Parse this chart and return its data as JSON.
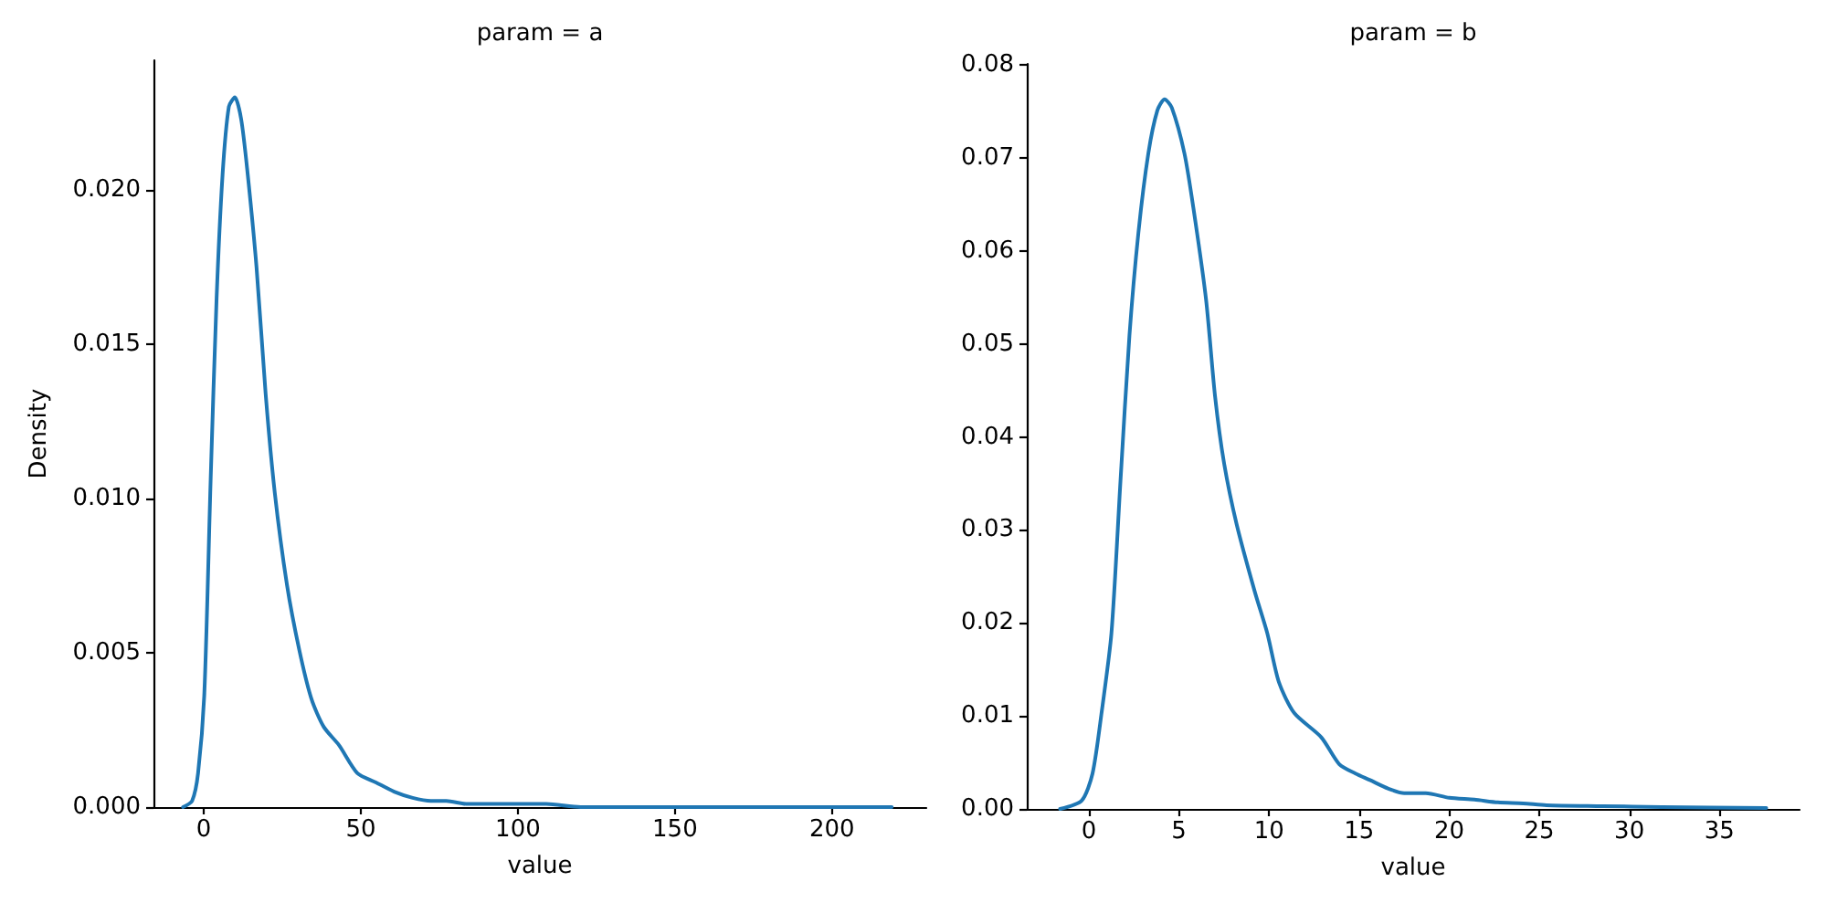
{
  "chart_data": [
    {
      "type": "line",
      "title": "param = a",
      "xlabel": "value",
      "ylabel": "Density",
      "color": "#1f77b4",
      "x": [
        -6.6,
        -3.7,
        -1.8,
        0.2,
        2.2,
        4.1,
        6.0,
        8.0,
        9.9,
        11.9,
        13.8,
        16.8,
        19.7,
        22.6,
        26.5,
        30.4,
        34.3,
        38.2,
        43.1,
        48.9,
        54.8,
        60.6,
        66.5,
        72.3,
        77.2,
        84,
        93.7,
        103.5,
        109,
        120,
        150,
        200,
        219
      ],
      "values": [
        0,
        0.0002,
        0.0011,
        0.0037,
        0.0106,
        0.0165,
        0.0205,
        0.0227,
        0.023,
        0.0223,
        0.0207,
        0.0175,
        0.0134,
        0.0102,
        0.0072,
        0.0051,
        0.0035,
        0.0026,
        0.002,
        0.0011,
        0.0008,
        0.0005,
        0.0003,
        0.0002,
        0.0002,
        0.0001,
        0.0001,
        0.0001,
        0.0001,
        0,
        0,
        0,
        0
      ],
      "xlim": [
        -16,
        230
      ],
      "xticks": [
        0,
        50,
        100,
        150,
        200
      ],
      "ylim": [
        0,
        0.0242
      ],
      "yticks": [
        {
          "value": 0,
          "label": "0.000"
        },
        0.005,
        {
          "value": 0.01,
          "label": "0.010"
        },
        0.015,
        {
          "value": 0.02,
          "label": "0.020"
        }
      ]
    },
    {
      "type": "line",
      "title": "param = b",
      "xlabel": "value",
      "color": "#1f77b4",
      "x": [
        -1.6,
        -0.4,
        0.2,
        0.7,
        1.25,
        1.75,
        2.25,
        2.75,
        3.3,
        3.8,
        4.2,
        4.6,
        5.3,
        5.8,
        6.5,
        7.0,
        7.5,
        8.2,
        9.2,
        9.9,
        10.55,
        11.4,
        12.9,
        13.9,
        14.8,
        15.6,
        16.6,
        17.5,
        18.7,
        20.0,
        21.4,
        22.7,
        24.1,
        25.4,
        28.5,
        31.8,
        37.6
      ],
      "values": [
        0,
        0.0009,
        0.0038,
        0.0103,
        0.0189,
        0.0352,
        0.0509,
        0.062,
        0.0705,
        0.0751,
        0.0763,
        0.0754,
        0.0705,
        0.0646,
        0.0548,
        0.0444,
        0.0372,
        0.0306,
        0.0234,
        0.0189,
        0.0136,
        0.0103,
        0.0077,
        0.0048,
        0.0038,
        0.0031,
        0.0022,
        0.0017,
        0.0017,
        0.0012,
        0.001,
        0.0007,
        0.0006,
        0.0004,
        0.0003,
        0.0002,
        0.0001
      ],
      "xlim": [
        -3.45,
        39.45
      ],
      "xticks": [
        0,
        5,
        10,
        15,
        20,
        25,
        30,
        35
      ],
      "ylim": [
        0,
        0.0801
      ],
      "yticks": [
        {
          "value": 0,
          "label": "0.00"
        },
        0.01,
        0.02,
        0.03,
        0.04,
        0.05,
        0.06,
        0.07,
        0.08
      ]
    }
  ]
}
